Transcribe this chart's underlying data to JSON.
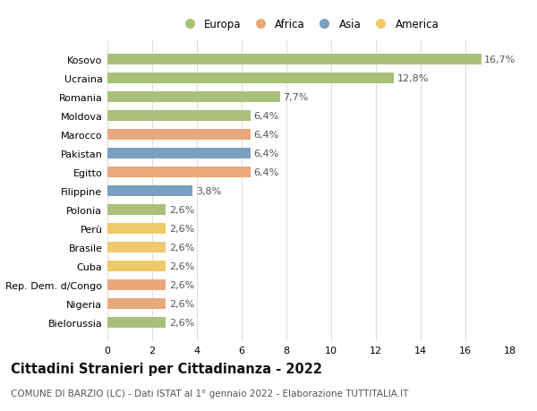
{
  "countries": [
    "Kosovo",
    "Ucraina",
    "Romania",
    "Moldova",
    "Marocco",
    "Pakistan",
    "Egitto",
    "Filippine",
    "Polonia",
    "Perù",
    "Brasile",
    "Cuba",
    "Rep. Dem. d/Congo",
    "Nigeria",
    "Bielorussia"
  ],
  "values": [
    16.7,
    12.8,
    7.7,
    6.4,
    6.4,
    6.4,
    6.4,
    3.8,
    2.6,
    2.6,
    2.6,
    2.6,
    2.6,
    2.6,
    2.6
  ],
  "labels": [
    "16,7%",
    "12,8%",
    "7,7%",
    "6,4%",
    "6,4%",
    "6,4%",
    "6,4%",
    "3,8%",
    "2,6%",
    "2,6%",
    "2,6%",
    "2,6%",
    "2,6%",
    "2,6%",
    "2,6%"
  ],
  "continents": [
    "Europa",
    "Europa",
    "Europa",
    "Europa",
    "Africa",
    "Asia",
    "Africa",
    "Asia",
    "Europa",
    "America",
    "America",
    "America",
    "Africa",
    "Africa",
    "Europa"
  ],
  "colors": {
    "Europa": "#a8c07a",
    "Africa": "#e8a87c",
    "Asia": "#7a9fc0",
    "America": "#f0c96a"
  },
  "legend_order": [
    "Europa",
    "Africa",
    "Asia",
    "America"
  ],
  "title": "Cittadini Stranieri per Cittadinanza - 2022",
  "subtitle": "COMUNE DI BARZIO (LC) - Dati ISTAT al 1° gennaio 2022 - Elaborazione TUTTITALIA.IT",
  "xlim": [
    0,
    18
  ],
  "xticks": [
    0,
    2,
    4,
    6,
    8,
    10,
    12,
    14,
    16,
    18
  ],
  "background_color": "#ffffff",
  "bar_height": 0.55,
  "grid_color": "#dddddd",
  "label_fontsize": 8,
  "tick_fontsize": 8,
  "title_fontsize": 10.5,
  "subtitle_fontsize": 7.5
}
